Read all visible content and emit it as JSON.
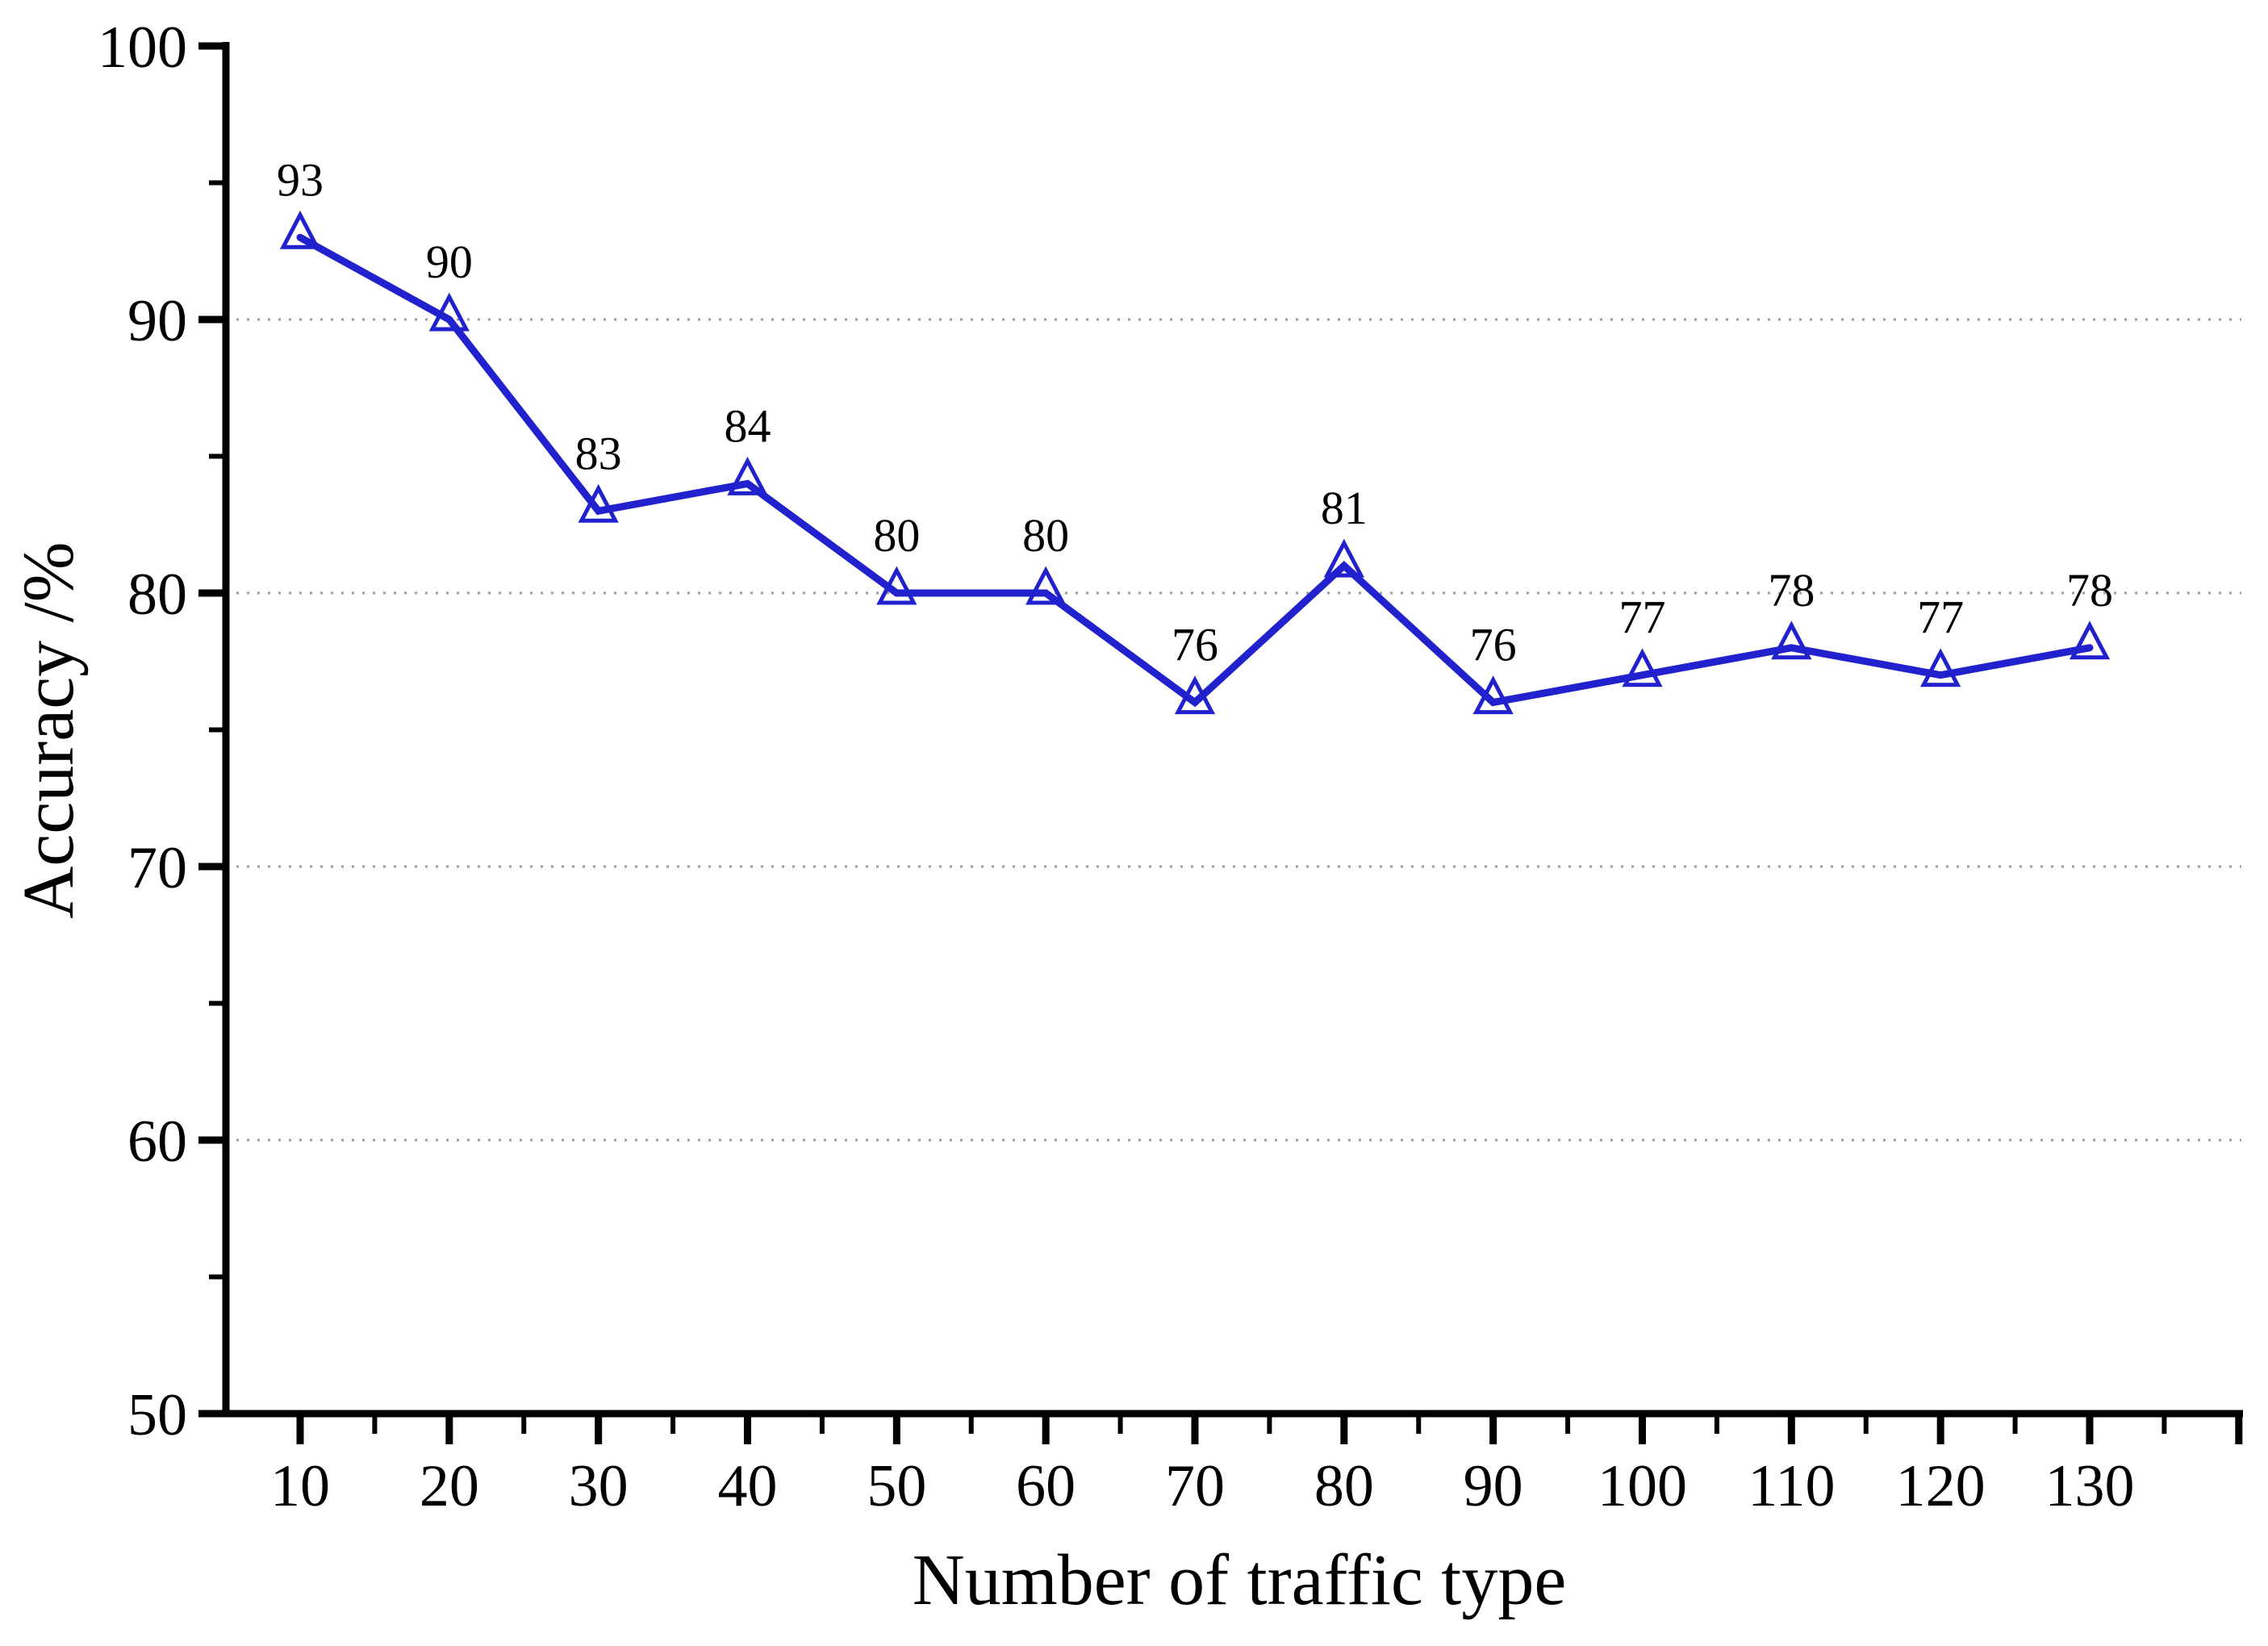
{
  "chart_data": {
    "type": "line",
    "title": "",
    "xlabel": "Number of traffic type",
    "ylabel": "Accuracy /%",
    "x": [
      10,
      20,
      30,
      40,
      50,
      60,
      70,
      80,
      90,
      100,
      110,
      120,
      130
    ],
    "values": [
      93,
      90,
      83,
      84,
      80,
      80,
      76,
      81,
      76,
      77,
      78,
      77,
      78
    ],
    "point_labels": [
      "93",
      "90",
      "83",
      "84",
      "80",
      "80",
      "76",
      "81",
      "76",
      "77",
      "78",
      "77",
      "78"
    ],
    "x_tick_labels": [
      "10",
      "20",
      "30",
      "40",
      "50",
      "60",
      "70",
      "80",
      "90",
      "100",
      "110",
      "120",
      "130"
    ],
    "y_ticks": [
      50,
      60,
      70,
      80,
      90,
      100
    ],
    "y_tick_labels": [
      "50",
      "60",
      "70",
      "80",
      "90",
      "100"
    ],
    "x_minor_ticks": [
      15,
      25,
      35,
      45,
      55,
      65,
      75,
      85,
      95,
      105,
      115,
      125,
      135
    ],
    "y_minor_ticks": [
      55,
      65,
      75,
      85,
      95
    ],
    "gridlines_at": [
      60,
      70,
      80,
      90
    ],
    "grid_style": "dotted-horizontal",
    "xlim": [
      5,
      140
    ],
    "ylim": [
      50,
      100
    ],
    "legend": null,
    "marker": "triangle-up-open",
    "colors": {
      "line": "#2121cd",
      "marker": "#2121cd",
      "grid": "#9b9b9b",
      "axis": "#000000",
      "text": "#000000",
      "background": "#ffffff"
    }
  }
}
